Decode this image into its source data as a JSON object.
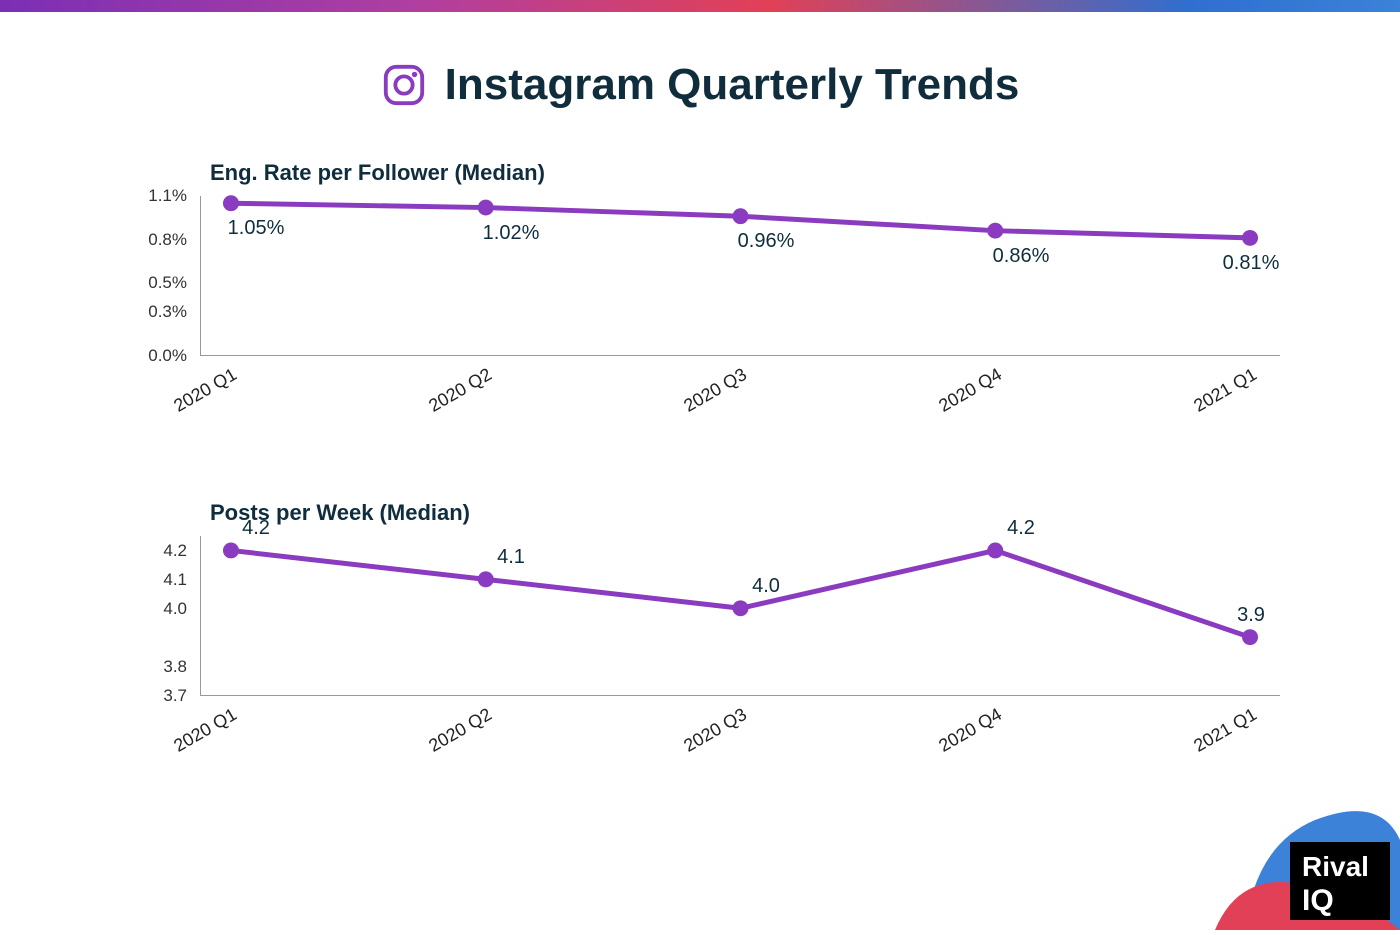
{
  "header": {
    "title": "Instagram Quarterly Trends",
    "icon_name": "instagram-icon",
    "icon_color": "#8a3bbf",
    "title_color": "#0f2d3c",
    "title_fontsize": 44,
    "gradient_stops": [
      "#7b2fb5",
      "#b03fa0",
      "#e24056",
      "#2f6fd0",
      "#3b82d8"
    ]
  },
  "charts": [
    {
      "id": "engagement",
      "type": "line",
      "title": "Eng. Rate per Follower (Median)",
      "title_fontsize": 22,
      "categories": [
        "2020 Q1",
        "2020 Q2",
        "2020 Q3",
        "2020 Q4",
        "2021 Q1"
      ],
      "values": [
        1.05,
        1.02,
        0.96,
        0.86,
        0.81
      ],
      "value_labels": [
        "1.05%",
        "1.02%",
        "0.96%",
        "0.86%",
        "0.81%"
      ],
      "y_ticks": [
        0.0,
        0.3,
        0.5,
        0.8,
        1.1
      ],
      "y_tick_labels": [
        "0.0%",
        "0.3%",
        "0.5%",
        "0.8%",
        "1.1%"
      ],
      "ylim": [
        0.0,
        1.1
      ],
      "line_color": "#8a3bbf",
      "marker_color": "#8a3bbf",
      "line_width": 5,
      "marker_radius": 8,
      "label_position": "below",
      "axis_fontsize": 17,
      "data_label_fontsize": 20,
      "x_label_rotation_deg": -30,
      "background_color": "#ffffff",
      "axis_color": "#999999"
    },
    {
      "id": "posts",
      "type": "line",
      "title": "Posts per Week (Median)",
      "title_fontsize": 22,
      "categories": [
        "2020 Q1",
        "2020 Q2",
        "2020 Q3",
        "2020 Q4",
        "2021 Q1"
      ],
      "values": [
        4.2,
        4.1,
        4.0,
        4.2,
        3.9
      ],
      "value_labels": [
        "4.2",
        "4.1",
        "4.0",
        "4.2",
        "3.9"
      ],
      "y_ticks": [
        3.7,
        3.8,
        4.0,
        4.1,
        4.2
      ],
      "y_tick_labels": [
        "3.7",
        "3.8",
        "4.0",
        "4.1",
        "4.2"
      ],
      "ylim": [
        3.7,
        4.25
      ],
      "line_color": "#8a3bbf",
      "marker_color": "#8a3bbf",
      "line_width": 5,
      "marker_radius": 8,
      "label_position": "above",
      "axis_fontsize": 17,
      "data_label_fontsize": 20,
      "x_label_rotation_deg": -30,
      "background_color": "#ffffff",
      "axis_color": "#999999"
    }
  ],
  "logo": {
    "text_top": "Rival",
    "text_bottom": "IQ",
    "box_color": "#000000",
    "text_color": "#ffffff",
    "blob_blue": "#3b82d8",
    "blob_red": "#e24056"
  }
}
